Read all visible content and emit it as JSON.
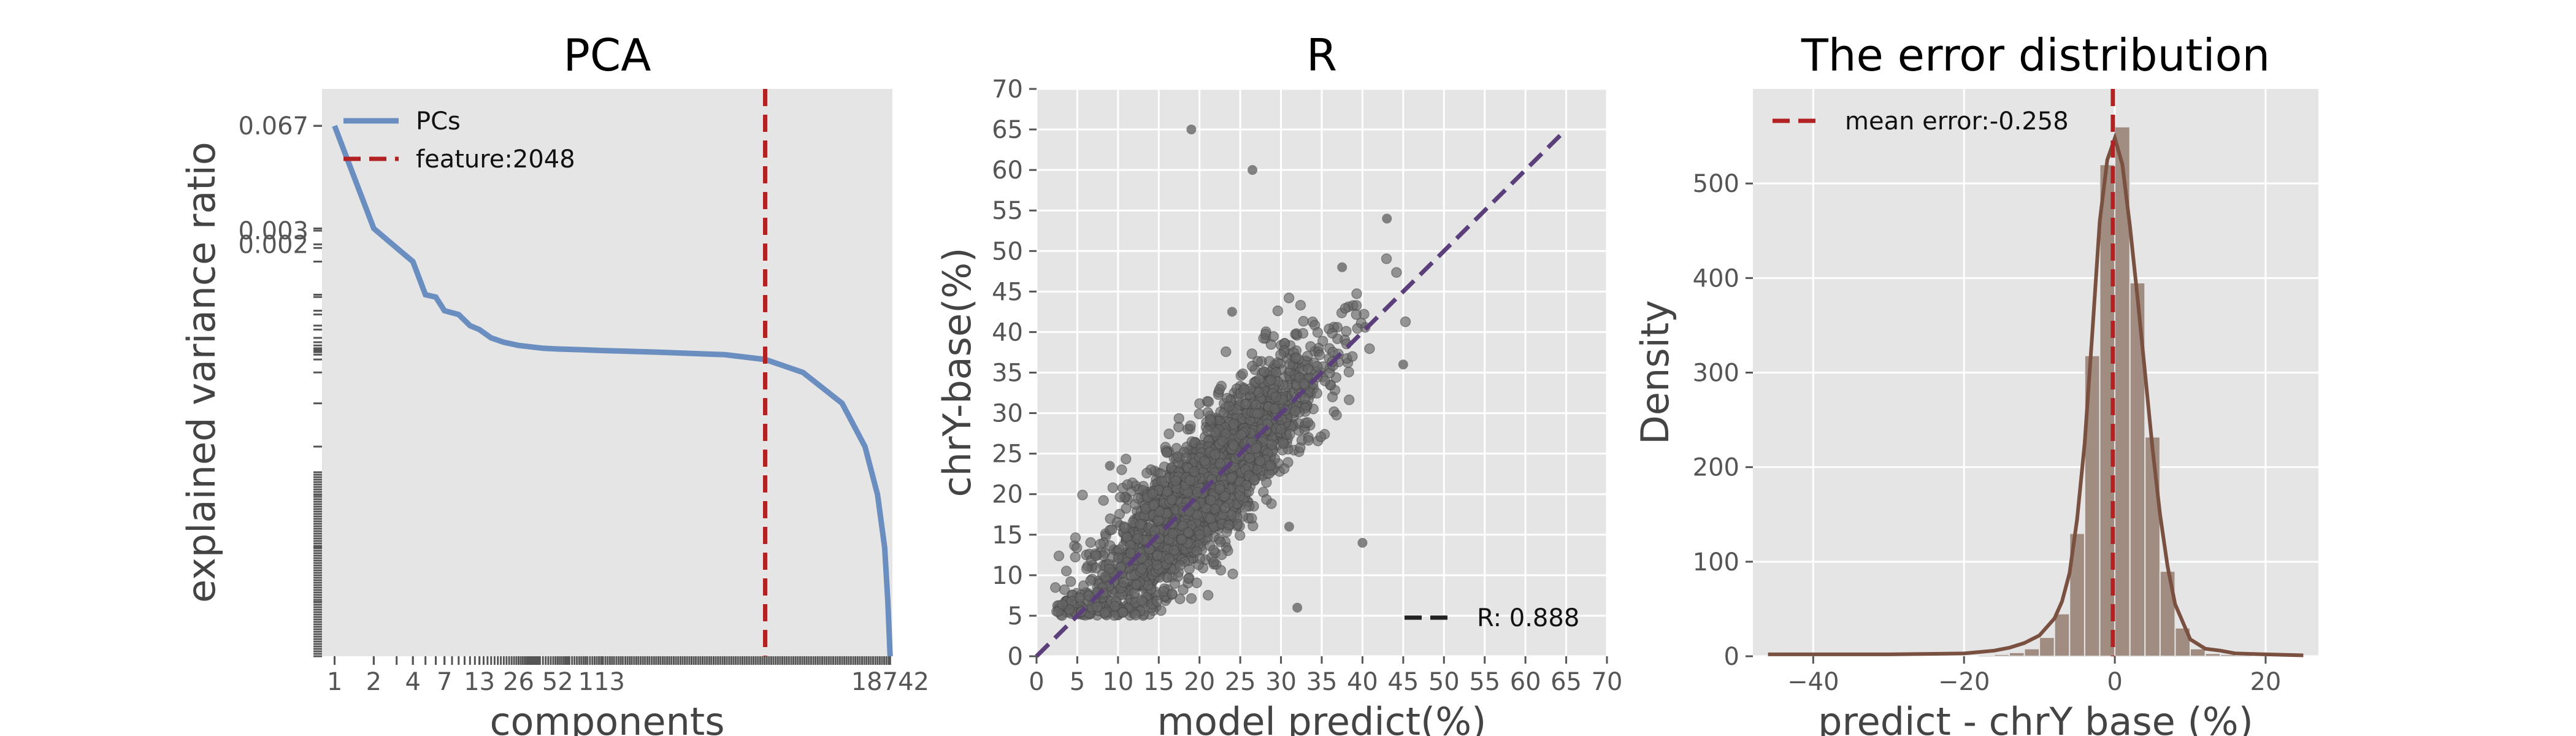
{
  "chart_data": [
    {
      "type": "line",
      "title": "PCA",
      "xlabel": "components",
      "ylabel": "explained variance ratio",
      "x_scale": "log",
      "y_scale": "log",
      "x_ticks": [
        "1",
        "2",
        "4",
        "7",
        "13",
        "26",
        "52",
        "113",
        "18742"
      ],
      "y_ticks": [
        "0.067",
        "0.003",
        "0.002"
      ],
      "xlim": [
        0.8,
        19500
      ],
      "ylim": [
        1e-08,
        0.2
      ],
      "grid": false,
      "legend": {
        "placement": "top-left",
        "entries": [
          "PCs",
          "feature:2048"
        ]
      },
      "series": [
        {
          "name": "PCs",
          "color": "#6a8ebf",
          "x": [
            1,
            2,
            3,
            4,
            5,
            6,
            7,
            9,
            11,
            13,
            16,
            20,
            26,
            40,
            52,
            80,
            113,
            300,
            1000,
            2048,
            4000,
            8000,
            12000,
            15000,
            17000,
            18000,
            18742
          ],
          "y": [
            0.067,
            0.0032,
            0.0018,
            0.0012,
            0.00045,
            0.00042,
            0.00028,
            0.00025,
            0.00018,
            0.00016,
            0.000125,
            0.00011,
            0.0001,
            9.2e-05,
            9e-05,
            8.8e-05,
            8.6e-05,
            8.2e-05,
            7.6e-05,
            6.6e-05,
            4.5e-05,
            1.8e-05,
            5e-06,
            1.2e-06,
            2.5e-07,
            5e-08,
            1e-08
          ]
        }
      ],
      "reference_lines": [
        {
          "name": "feature:2048",
          "orientation": "vertical",
          "x": 2048,
          "color": "#b22222",
          "style": "dashed"
        }
      ]
    },
    {
      "type": "scatter",
      "title": "R",
      "xlabel": "model predict(%)",
      "ylabel": "chrY-base(%)",
      "xlim": [
        0,
        70
      ],
      "ylim": [
        0,
        70
      ],
      "x_ticks": [
        "0",
        "5",
        "10",
        "15",
        "20",
        "25",
        "30",
        "35",
        "40",
        "45",
        "50",
        "55",
        "60",
        "65",
        "70"
      ],
      "y_ticks": [
        "0",
        "5",
        "10",
        "15",
        "20",
        "25",
        "30",
        "35",
        "40",
        "45",
        "50",
        "55",
        "60",
        "65",
        "70"
      ],
      "grid": true,
      "point_color": "#666666",
      "point_count_approx": 2400,
      "point_cloud": {
        "x_mean": 20.5,
        "x_sd": 7.5,
        "correlation": 0.888,
        "residual_sd": 4.0,
        "y_min": 5
      },
      "outliers": [
        [
          19,
          65
        ],
        [
          26.5,
          60
        ],
        [
          24,
          42.5
        ],
        [
          43,
          54
        ],
        [
          37.5,
          48
        ],
        [
          45,
          36
        ],
        [
          32,
          6
        ],
        [
          31,
          16
        ],
        [
          9,
          23.5
        ],
        [
          40,
          14
        ]
      ],
      "reference_lines": [
        {
          "name": "R: 0.888",
          "from": [
            0,
            0
          ],
          "to": [
            65,
            65
          ],
          "color": "#5b3f7a",
          "style": "dashed"
        }
      ],
      "legend": {
        "placement": "bottom-right",
        "entries": [
          "R: 0.888"
        ],
        "marker_color": "#222222"
      }
    },
    {
      "type": "bar",
      "subtype": "histogram_with_kde",
      "title": "The error distribution",
      "xlabel": "predict - chrY base (%)",
      "ylabel": "Density",
      "xlim": [
        -48,
        27
      ],
      "ylim": [
        0,
        600
      ],
      "x_ticks": [
        "−40",
        "−20",
        "0",
        "20"
      ],
      "y_ticks": [
        "0",
        "100",
        "200",
        "300",
        "400",
        "500"
      ],
      "grid": true,
      "bin_width": 2,
      "bins_start": [
        -46,
        -44,
        -42,
        -40,
        -38,
        -36,
        -34,
        -32,
        -30,
        -28,
        -26,
        -24,
        -22,
        -20,
        -18,
        -16,
        -14,
        -12,
        -10,
        -8,
        -6,
        -4,
        -2,
        0,
        2,
        4,
        6,
        8,
        10,
        12,
        14,
        16,
        18,
        20,
        22,
        24
      ],
      "counts": [
        0,
        0,
        0,
        0,
        0,
        0,
        0,
        0,
        0,
        0,
        0,
        0,
        0,
        0,
        1,
        2,
        4,
        8,
        20,
        45,
        130,
        318,
        520,
        560,
        395,
        232,
        90,
        30,
        8,
        3,
        2,
        1,
        0,
        0,
        0,
        0
      ],
      "bar_color": "#a08c80",
      "kde_color": "#7a5040",
      "kde": {
        "x": [
          -46,
          -30,
          -20,
          -16,
          -14,
          -12,
          -10,
          -8,
          -7,
          -6,
          -5,
          -4,
          -3,
          -2,
          -1,
          0,
          1,
          2,
          3,
          4,
          5,
          6,
          7,
          8,
          10,
          12,
          14,
          16,
          20,
          25
        ],
        "y": [
          2,
          2,
          3,
          6,
          9,
          14,
          22,
          40,
          58,
          88,
          145,
          225,
          340,
          460,
          525,
          548,
          520,
          455,
          380,
          300,
          220,
          150,
          95,
          55,
          18,
          8,
          6,
          3,
          2,
          1
        ]
      },
      "reference_lines": [
        {
          "name": "mean error:-0.258",
          "orientation": "vertical",
          "x": -0.258,
          "color": "#b22222",
          "style": "dashed"
        }
      ],
      "legend": {
        "placement": "top-left",
        "entries": [
          "mean error:-0.258"
        ]
      }
    }
  ]
}
